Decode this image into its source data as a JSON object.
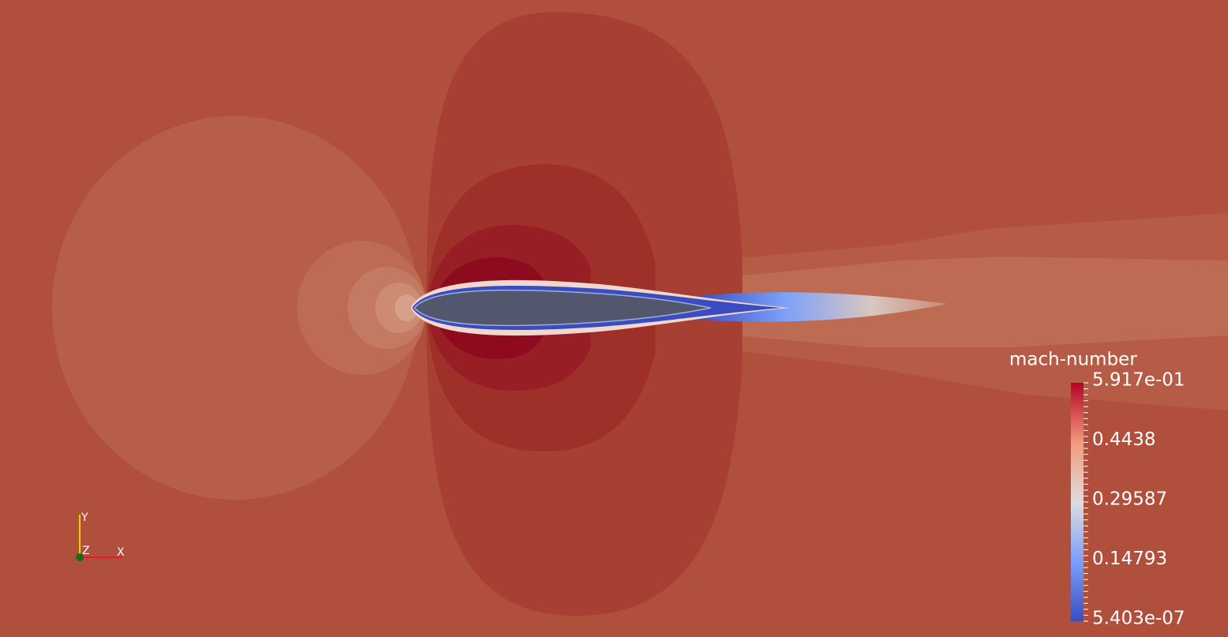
{
  "legend": {
    "title": "mach-number",
    "labels": [
      "5.917e-01",
      "0.4438",
      "0.29587",
      "0.14793",
      "5.403e-07"
    ]
  },
  "axes": {
    "y": "Y",
    "z": "Z",
    "x": "X"
  }
}
